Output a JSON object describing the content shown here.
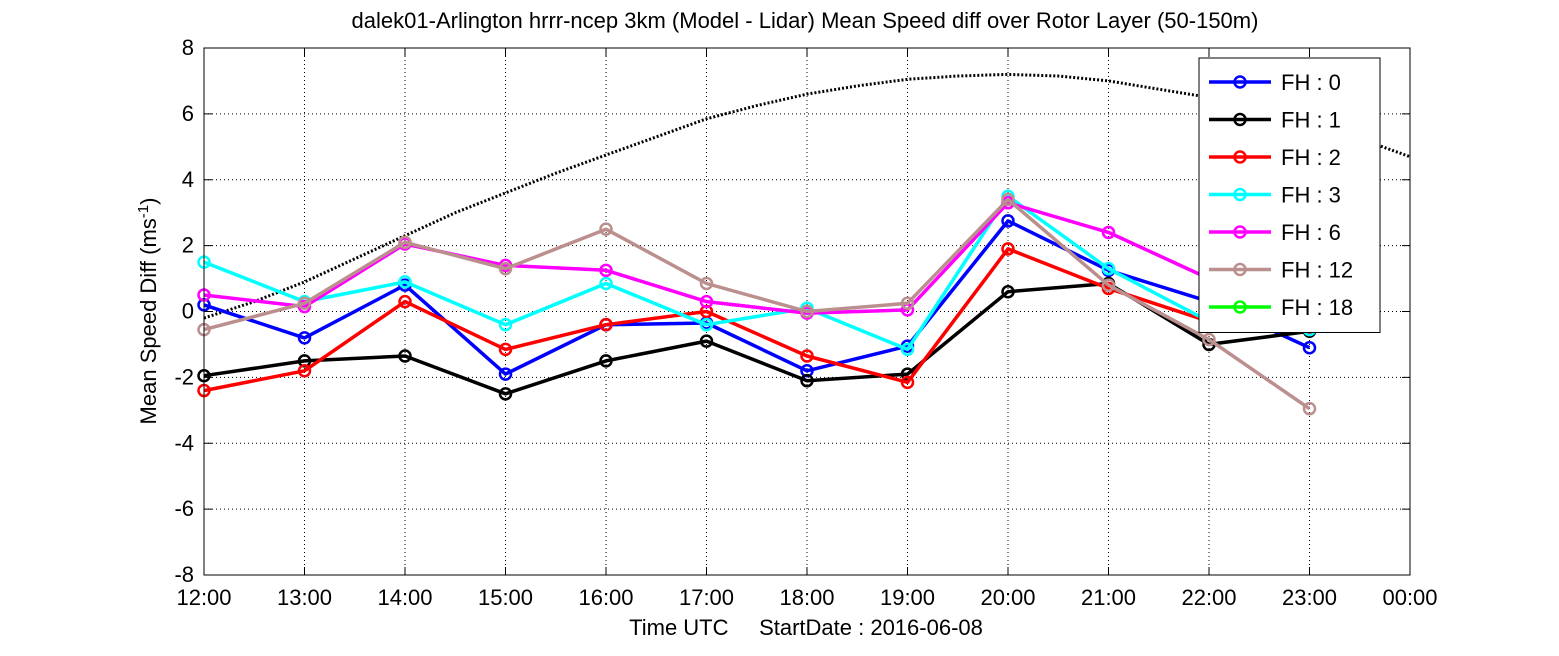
{
  "chart_data": {
    "type": "line",
    "title": "dalek01-Arlington hrrr-ncep 3km (Model - Lidar) Mean Speed diff over Rotor Layer (50-150m)",
    "ylabel": "Mean Speed Diff (ms",
    "ylabel_sup": "-1",
    "ylabel_end": ")",
    "xlabel": "Time UTC     StartDate : 2016-06-08",
    "ylim": [
      -8,
      8
    ],
    "yticks": [
      -8,
      -6,
      -4,
      -2,
      0,
      2,
      4,
      6,
      8
    ],
    "xlim": [
      12,
      24
    ],
    "xticks": [
      12,
      13,
      14,
      15,
      16,
      17,
      18,
      19,
      20,
      21,
      22,
      23,
      24
    ],
    "xtick_labels": [
      "12:00",
      "13:00",
      "14:00",
      "15:00",
      "16:00",
      "17:00",
      "18:00",
      "19:00",
      "20:00",
      "21:00",
      "22:00",
      "23:00",
      "00:00"
    ],
    "grid": true,
    "legend_position": "top-right",
    "x": [
      12,
      13,
      14,
      15,
      16,
      17,
      18,
      19,
      20,
      21,
      22,
      23
    ],
    "series": [
      {
        "name": "FH : 0",
        "color": "#0000ff",
        "values": [
          0.2,
          -0.8,
          0.8,
          -1.9,
          -0.4,
          -0.35,
          -1.8,
          -1.05,
          2.75,
          1.25,
          0.3,
          -1.1
        ]
      },
      {
        "name": "FH : 1",
        "color": "#000000",
        "values": [
          -1.95,
          -1.5,
          -1.35,
          -2.5,
          -1.5,
          -0.9,
          -2.1,
          -1.9,
          0.6,
          0.85,
          -1.0,
          -0.6
        ]
      },
      {
        "name": "FH : 2",
        "color": "#ff0000",
        "values": [
          -2.4,
          -1.8,
          0.3,
          -1.15,
          -0.4,
          0.0,
          -1.35,
          -2.15,
          1.9,
          0.7,
          -0.3,
          -0.5
        ]
      },
      {
        "name": "FH : 3",
        "color": "#00ffff",
        "values": [
          1.5,
          0.3,
          0.9,
          -0.4,
          0.85,
          -0.4,
          0.1,
          -1.15,
          3.5,
          1.3,
          -0.3,
          -0.55
        ]
      },
      {
        "name": "FH : 6",
        "color": "#ff00ff",
        "values": [
          0.5,
          0.15,
          2.05,
          1.4,
          1.25,
          0.3,
          -0.05,
          0.05,
          3.3,
          2.4,
          1.0,
          null
        ]
      },
      {
        "name": "FH : 12",
        "color": "#bc8f8f",
        "values": [
          -0.55,
          0.25,
          2.1,
          1.3,
          2.5,
          0.85,
          0.0,
          0.25,
          3.4,
          0.8,
          -0.85,
          -2.95
        ]
      },
      {
        "name": "FH : 18",
        "color": "#00ff00",
        "values": [
          null,
          null,
          null,
          null,
          null,
          null,
          null,
          null,
          null,
          null,
          null,
          null
        ]
      }
    ],
    "reference_curve": {
      "style": "dotted",
      "color": "#000000",
      "x": [
        12,
        12.5,
        13,
        13.5,
        14,
        14.5,
        15,
        15.5,
        16,
        16.5,
        17,
        17.5,
        18,
        18.5,
        19,
        19.5,
        20,
        20.5,
        21,
        21.5,
        22,
        22.5,
        23,
        23.5,
        24
      ],
      "values": [
        -0.2,
        0.3,
        0.9,
        1.6,
        2.3,
        3.0,
        3.6,
        4.2,
        4.75,
        5.3,
        5.85,
        6.25,
        6.6,
        6.85,
        7.05,
        7.15,
        7.2,
        7.15,
        7.0,
        6.75,
        6.5,
        6.1,
        5.7,
        5.25,
        4.7
      ]
    }
  }
}
